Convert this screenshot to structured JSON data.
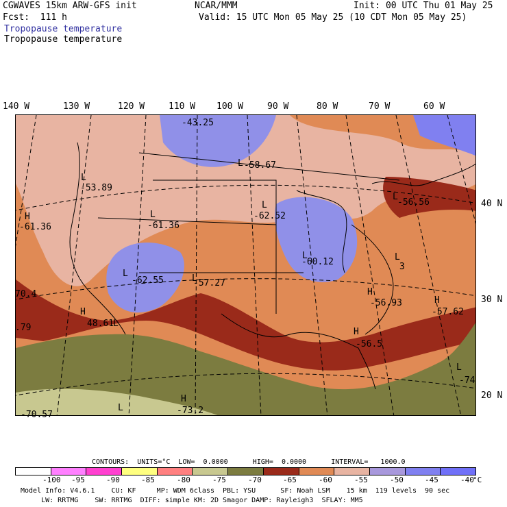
{
  "header": {
    "model": "CGWAVES 15km ARW-GFS init",
    "fcst": "Fcst:  111 h",
    "field_blue": "Tropopause temperature",
    "field_black": "Tropopause temperature",
    "center": "NCAR/MMM",
    "init": "Init: 00 UTC Thu 01 May 25",
    "valid": "Valid: 15 UTC Mon 05 May 25 (10 CDT Mon 05 May 25)"
  },
  "lon_labels": [
    "140 W",
    "130 W",
    "120 W",
    "110 W",
    "100 W",
    "90 W",
    "80 W",
    "70 W",
    "60 W"
  ],
  "lat_labels": [
    "40 N",
    "30 N",
    "20 N"
  ],
  "map_labels": [
    {
      "text": "-43.25"
    },
    {
      "text": "-58.67"
    },
    {
      "text": "-53.89"
    },
    {
      "text": "-61.36"
    },
    {
      "text": "-61.36"
    },
    {
      "text": "-62.52"
    },
    {
      "text": "-56.56"
    },
    {
      "text": "-60.12"
    },
    {
      "text": "-62.55"
    },
    {
      "text": "-57.27"
    },
    {
      "text": "-56.93"
    },
    {
      "text": "-57.62"
    },
    {
      "text": "70.4"
    },
    {
      "text": "48.61"
    },
    {
      "text": ".79"
    },
    {
      "text": "-56.5"
    },
    {
      "text": "3"
    },
    {
      "text": "-74"
    },
    {
      "text": "-73.2"
    },
    {
      "text": "-70.57"
    }
  ],
  "hl_markers": [
    {
      "text": "L"
    },
    {
      "text": "H"
    },
    {
      "text": "L"
    },
    {
      "text": "L"
    },
    {
      "text": "L"
    },
    {
      "text": "L"
    },
    {
      "text": "L"
    },
    {
      "text": "L"
    },
    {
      "text": "H"
    },
    {
      "text": "H"
    },
    {
      "text": "H"
    },
    {
      "text": "L"
    },
    {
      "text": "L"
    },
    {
      "text": "H"
    },
    {
      "text": "L"
    },
    {
      "text": "H"
    },
    {
      "text": "L"
    },
    {
      "text": "L"
    }
  ],
  "contours": {
    "units_label": "CONTOURS:  UNITS=°C  LOW=  0.0000      HIGH=  0.0000      INTERVAL=   1000.0"
  },
  "colorbar": {
    "colors": [
      "#ffffff",
      "#ff80ff",
      "#ff40d0",
      "#ffff80",
      "#ff8080",
      "#c8c890",
      "#7c7c40",
      "#9a2a1a",
      "#e08a55",
      "#e8b4a2",
      "#a898dc",
      "#8080f0",
      "#7070f8"
    ],
    "ticks": [
      "-100",
      "-95",
      "-90",
      "-85",
      "-80",
      "-75",
      "-70",
      "-65",
      "-60",
      "-55",
      "-50",
      "-45",
      "-40",
      "°C"
    ]
  },
  "footer": {
    "line1": "Model Info: V4.6.1    CU: KF     MP: WDM 6class  PBL: YSU      SF: Noah LSM    15 km  119 levels  90 sec",
    "line2": "     LW: RRTMG    SW: RRTMG  DIFF: simple KM: 2D Smagor DAMP: Rayleigh3  SFLAY: MM5"
  }
}
